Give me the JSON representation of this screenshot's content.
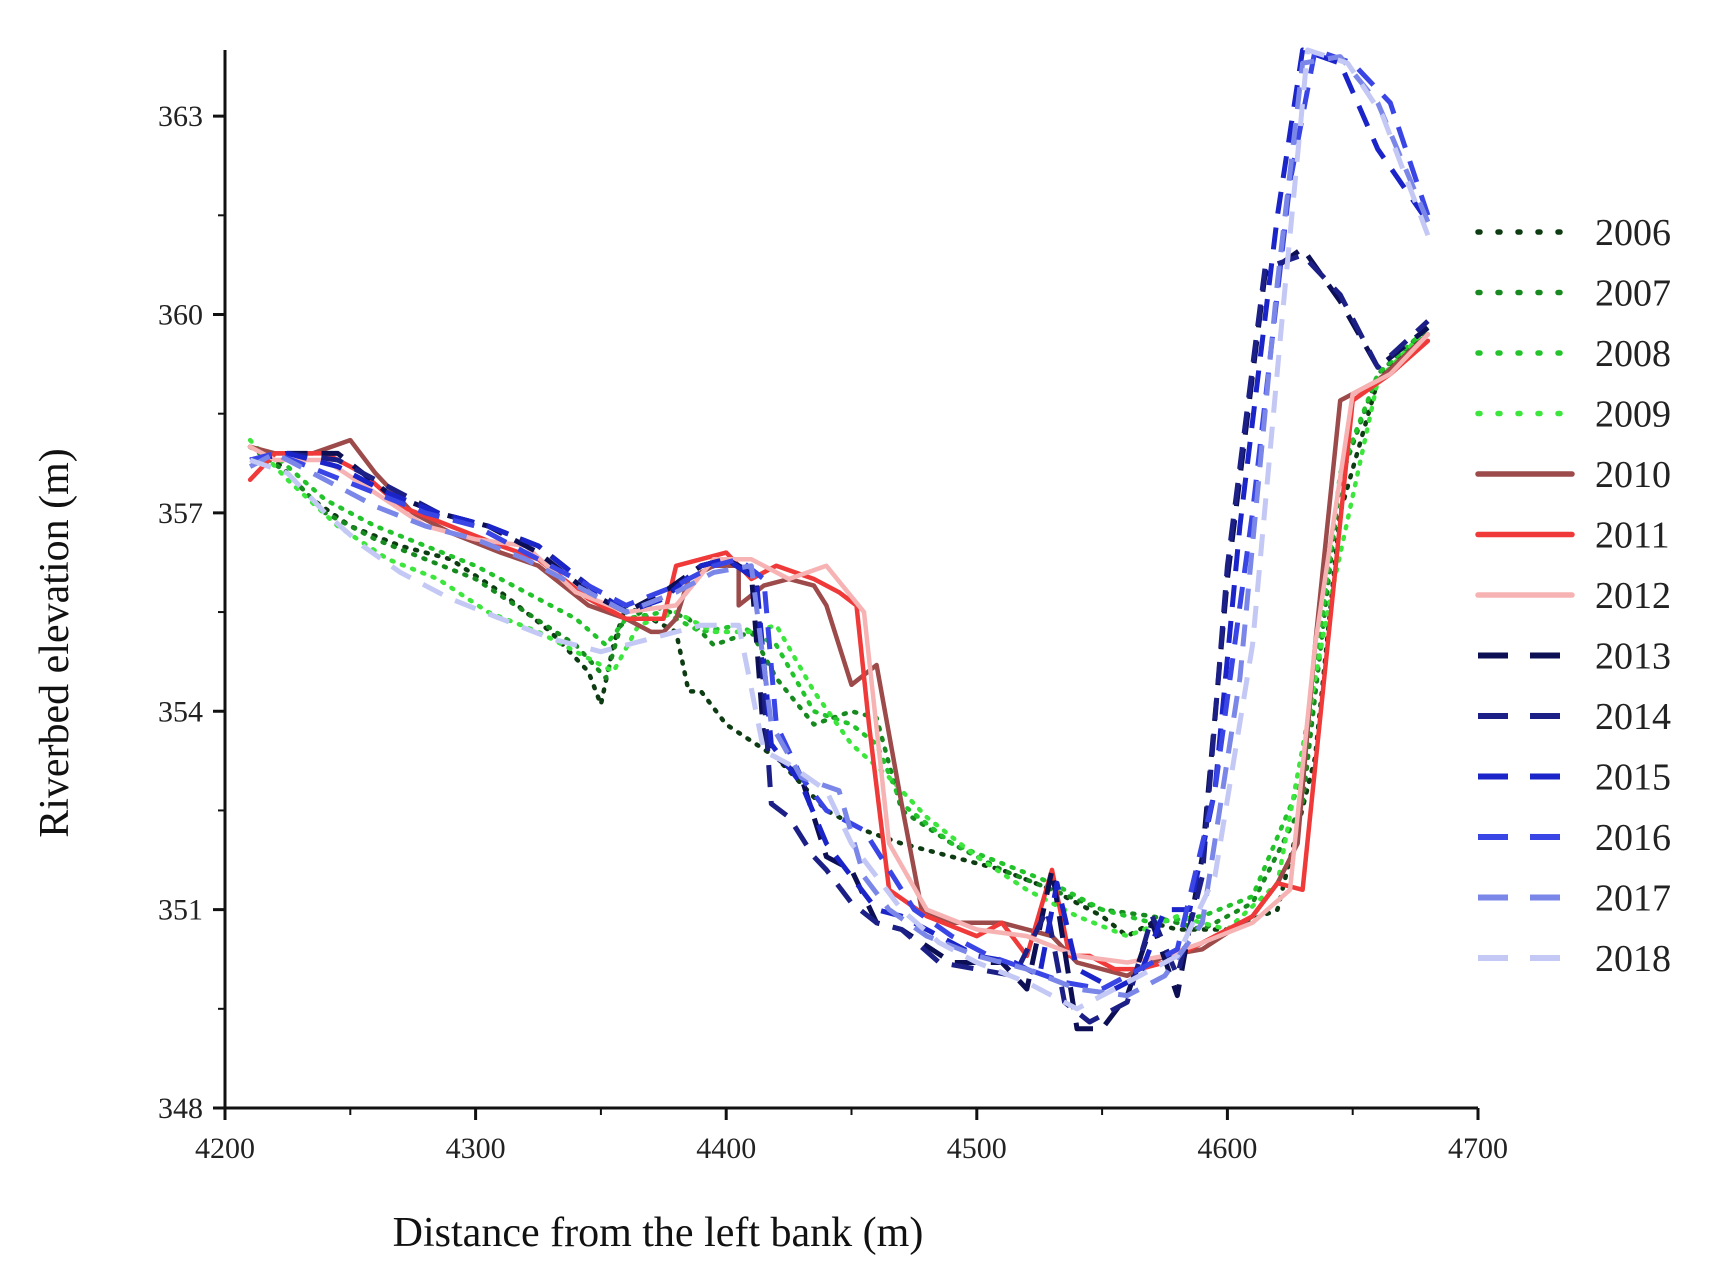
{
  "chart_data": {
    "type": "line",
    "title": "",
    "xlabel": "Distance from the left bank (m)",
    "ylabel": "Riverbed elevation (m)",
    "xlim": [
      4200,
      4700
    ],
    "ylim": [
      348,
      364
    ],
    "xticks": [
      4200,
      4300,
      4400,
      4500,
      4600,
      4700
    ],
    "yticks": [
      348,
      351,
      354,
      357,
      360,
      363
    ],
    "legend_position": "right",
    "series": [
      {
        "name": "2006",
        "color": "#0d3b12",
        "style": "dotted",
        "x": [
          4210,
          4220,
          4235,
          4250,
          4270,
          4290,
          4310,
          4330,
          4345,
          4350,
          4355,
          4360,
          4370,
          4380,
          4385,
          4390,
          4400,
          4420,
          4440,
          4455,
          4470,
          4490,
          4510,
          4530,
          4550,
          4560,
          4570,
          4580,
          4600,
          4620,
          4635,
          4645,
          4660,
          4680
        ],
        "y": [
          358.0,
          357.8,
          357.2,
          356.8,
          356.5,
          356.3,
          355.8,
          355.2,
          354.6,
          354.1,
          355.0,
          355.6,
          355.4,
          355.2,
          354.3,
          354.3,
          353.8,
          353.3,
          352.5,
          352.2,
          352.0,
          351.8,
          351.6,
          351.3,
          350.9,
          350.6,
          350.8,
          350.7,
          350.7,
          351.0,
          353.3,
          357.0,
          359.0,
          359.8
        ]
      },
      {
        "name": "2007",
        "color": "#168a1e",
        "style": "dotted",
        "x": [
          4210,
          4225,
          4240,
          4260,
          4280,
          4300,
          4320,
          4340,
          4352,
          4358,
          4370,
          4385,
          4395,
          4410,
          4420,
          4435,
          4450,
          4460,
          4470,
          4490,
          4510,
          4530,
          4550,
          4570,
          4590,
          4610,
          4630,
          4645,
          4660,
          4680
        ],
        "y": [
          358.0,
          357.6,
          357.0,
          356.6,
          356.3,
          356.0,
          355.5,
          355.0,
          354.5,
          355.3,
          355.6,
          355.4,
          355.0,
          355.2,
          354.5,
          353.8,
          354.0,
          353.9,
          352.5,
          352.0,
          351.6,
          351.3,
          351.0,
          350.9,
          350.7,
          351.1,
          352.6,
          357.5,
          359.1,
          359.8
        ]
      },
      {
        "name": "2008",
        "color": "#22c32b",
        "style": "dotted",
        "x": [
          4210,
          4222,
          4240,
          4260,
          4280,
          4300,
          4320,
          4340,
          4352,
          4360,
          4375,
          4390,
          4405,
          4420,
          4435,
          4450,
          4460,
          4470,
          4490,
          4510,
          4530,
          4550,
          4570,
          4590,
          4610,
          4630,
          4645,
          4660,
          4680
        ],
        "y": [
          358.0,
          357.8,
          357.2,
          356.8,
          356.5,
          356.2,
          355.8,
          355.4,
          355.0,
          355.4,
          355.5,
          355.2,
          355.3,
          355.0,
          354.0,
          353.8,
          353.5,
          352.6,
          352.0,
          351.7,
          351.4,
          351.0,
          350.8,
          350.9,
          351.2,
          353.0,
          357.6,
          359.1,
          359.8
        ]
      },
      {
        "name": "2009",
        "color": "#3ce63c",
        "style": "dotted",
        "x": [
          4210,
          4225,
          4245,
          4265,
          4285,
          4305,
          4325,
          4345,
          4355,
          4365,
          4380,
          4395,
          4410,
          4420,
          4435,
          4450,
          4465,
          4480,
          4500,
          4520,
          4540,
          4560,
          4580,
          4600,
          4620,
          4640,
          4660,
          4680
        ],
        "y": [
          358.1,
          357.5,
          356.8,
          356.3,
          356.0,
          355.5,
          355.2,
          354.8,
          354.6,
          355.3,
          355.5,
          355.2,
          355.2,
          355.3,
          354.3,
          353.5,
          353.0,
          352.4,
          351.8,
          351.3,
          350.9,
          350.6,
          350.9,
          350.7,
          351.4,
          355.5,
          359.0,
          359.8
        ]
      },
      {
        "name": "2010",
        "color": "#9c4a4a",
        "style": "solid",
        "x": [
          4210,
          4220,
          4235,
          4250,
          4260,
          4275,
          4290,
          4310,
          4325,
          4345,
          4360,
          4370,
          4375,
          4380,
          4385,
          4395,
          4405,
          4405,
          4415,
          4425,
          4435,
          4440,
          4450,
          4460,
          4470,
          4478,
          4490,
          4510,
          4530,
          4540,
          4560,
          4575,
          4590,
          4610,
          4620,
          4628,
          4635,
          4645,
          4660,
          4680
        ],
        "y": [
          358.0,
          357.9,
          357.9,
          358.1,
          357.6,
          357.0,
          356.7,
          356.4,
          356.2,
          355.6,
          355.4,
          355.2,
          355.2,
          355.4,
          356.0,
          356.2,
          356.2,
          355.6,
          355.9,
          356.0,
          355.9,
          355.6,
          354.4,
          354.7,
          352.6,
          351.0,
          350.8,
          350.8,
          350.6,
          350.2,
          350.0,
          350.3,
          350.4,
          350.9,
          351.4,
          352.0,
          355.0,
          358.7,
          359.0,
          359.7
        ]
      },
      {
        "name": "2011",
        "color": "#f03a3a",
        "style": "solid",
        "x": [
          4210,
          4220,
          4240,
          4255,
          4270,
          4290,
          4310,
          4325,
          4345,
          4360,
          4375,
          4380,
          4390,
          4400,
          4410,
          4420,
          4435,
          4445,
          4452,
          4457,
          4465,
          4480,
          4500,
          4510,
          4520,
          4530,
          4537,
          4545,
          4555,
          4565,
          4575,
          4590,
          4610,
          4620,
          4630,
          4640,
          4650,
          4665,
          4680
        ],
        "y": [
          357.5,
          357.9,
          357.9,
          357.6,
          357.1,
          356.8,
          356.5,
          356.3,
          355.7,
          355.4,
          355.4,
          356.2,
          356.3,
          356.4,
          356.0,
          356.2,
          356.0,
          355.8,
          355.6,
          353.8,
          351.3,
          350.9,
          350.6,
          350.8,
          350.3,
          351.6,
          350.3,
          350.3,
          350.1,
          350.1,
          350.2,
          350.5,
          350.9,
          351.4,
          351.3,
          355.0,
          358.7,
          359.1,
          359.6
        ]
      },
      {
        "name": "2012",
        "color": "#f7b3b3",
        "style": "solid",
        "x": [
          4210,
          4220,
          4240,
          4260,
          4280,
          4300,
          4320,
          4340,
          4360,
          4380,
          4395,
          4410,
          4425,
          4440,
          4455,
          4465,
          4480,
          4500,
          4520,
          4540,
          4560,
          4575,
          4590,
          4610,
          4625,
          4635,
          4650,
          4665,
          4680
        ],
        "y": [
          358.0,
          357.8,
          357.8,
          357.3,
          356.8,
          356.6,
          356.5,
          355.8,
          355.5,
          355.6,
          356.3,
          356.3,
          356.0,
          356.2,
          355.5,
          352.0,
          351.0,
          350.7,
          350.6,
          350.3,
          350.2,
          350.3,
          350.5,
          350.8,
          351.3,
          355.0,
          358.8,
          359.1,
          359.7
        ]
      },
      {
        "name": "2013",
        "color": "#0c0f54",
        "style": "dashed",
        "x": [
          4210,
          4225,
          4245,
          4265,
          4285,
          4305,
          4325,
          4345,
          4360,
          4375,
          4390,
          4400,
          4410,
          4415,
          4420,
          4430,
          4440,
          4450,
          4460,
          4470,
          4490,
          4510,
          4520,
          4530,
          4540,
          4550,
          4560,
          4570,
          4580,
          4590,
          4600,
          4615,
          4630,
          4645,
          4660,
          4680
        ],
        "y": [
          357.8,
          357.9,
          357.9,
          357.3,
          357.0,
          356.8,
          356.4,
          355.8,
          355.5,
          355.8,
          356.2,
          356.3,
          356.1,
          353.6,
          353.3,
          353.0,
          351.8,
          351.6,
          350.8,
          350.7,
          350.2,
          350.2,
          349.8,
          351.6,
          349.2,
          349.2,
          349.7,
          350.8,
          349.7,
          351.8,
          356.0,
          360.6,
          361.0,
          360.2,
          359.2,
          359.8
        ]
      },
      {
        "name": "2014",
        "color": "#1b1f86",
        "style": "dashed",
        "x": [
          4210,
          4225,
          4245,
          4265,
          4285,
          4305,
          4325,
          4345,
          4360,
          4375,
          4390,
          4400,
          4412,
          4418,
          4425,
          4435,
          4440,
          4450,
          4460,
          4470,
          4485,
          4500,
          4515,
          4528,
          4535,
          4545,
          4560,
          4570,
          4580,
          4590,
          4600,
          4615,
          4630,
          4645,
          4660,
          4680
        ],
        "y": [
          357.8,
          357.9,
          357.8,
          357.4,
          357.0,
          356.8,
          356.5,
          355.9,
          355.5,
          355.7,
          356.2,
          356.3,
          356.0,
          352.6,
          352.4,
          351.8,
          351.6,
          351.1,
          350.8,
          350.7,
          350.2,
          350.1,
          350.0,
          351.0,
          349.6,
          349.3,
          349.6,
          350.9,
          350.0,
          351.5,
          356.2,
          360.7,
          360.9,
          360.3,
          359.2,
          359.9
        ]
      },
      {
        "name": "2015",
        "color": "#1a24c8",
        "style": "dashed",
        "x": [
          4210,
          4225,
          4245,
          4265,
          4285,
          4305,
          4325,
          4345,
          4360,
          4375,
          4390,
          4400,
          4412,
          4418,
          4430,
          4440,
          4450,
          4460,
          4470,
          4485,
          4500,
          4515,
          4525,
          4532,
          4540,
          4555,
          4565,
          4575,
          4585,
          4595,
          4605,
          4620,
          4630,
          4645,
          4660,
          4680
        ],
        "y": [
          357.8,
          357.9,
          357.7,
          357.3,
          357.0,
          356.8,
          356.5,
          355.9,
          355.5,
          355.7,
          356.2,
          356.3,
          356.0,
          353.5,
          352.9,
          352.0,
          351.5,
          351.0,
          350.9,
          350.6,
          350.3,
          350.2,
          350.0,
          351.4,
          350.1,
          349.8,
          350.0,
          351.0,
          351.0,
          352.8,
          356.8,
          361.5,
          364.0,
          363.8,
          362.5,
          361.4
        ]
      },
      {
        "name": "2016",
        "color": "#3a45e6",
        "style": "dashed",
        "x": [
          4210,
          4220,
          4240,
          4260,
          4280,
          4300,
          4320,
          4340,
          4360,
          4380,
          4395,
          4405,
          4415,
          4420,
          4430,
          4440,
          4455,
          4465,
          4475,
          4490,
          4505,
          4520,
          4535,
          4550,
          4565,
          4580,
          4595,
          4610,
          4625,
          4635,
          4650,
          4665,
          4680
        ],
        "y": [
          357.8,
          357.9,
          357.6,
          357.3,
          357.0,
          356.8,
          356.4,
          356.0,
          355.6,
          355.9,
          356.2,
          356.3,
          356.0,
          353.8,
          353.0,
          352.5,
          352.2,
          351.6,
          351.0,
          350.6,
          350.3,
          350.1,
          349.9,
          349.8,
          350.1,
          350.4,
          352.8,
          357.0,
          362.0,
          364.0,
          363.8,
          363.2,
          361.5
        ]
      },
      {
        "name": "2017",
        "color": "#7a86e8",
        "style": "dashed",
        "x": [
          4210,
          4220,
          4240,
          4260,
          4280,
          4300,
          4320,
          4340,
          4360,
          4380,
          4395,
          4410,
          4418,
          4430,
          4445,
          4455,
          4465,
          4480,
          4500,
          4520,
          4540,
          4560,
          4575,
          4590,
          4605,
          4620,
          4630,
          4645,
          4660,
          4680
        ],
        "y": [
          357.7,
          357.9,
          357.5,
          357.1,
          356.8,
          356.6,
          356.3,
          355.9,
          355.5,
          355.8,
          356.1,
          356.2,
          353.8,
          353.0,
          352.8,
          351.5,
          351.0,
          350.6,
          350.3,
          350.1,
          349.8,
          349.7,
          350.0,
          350.8,
          354.5,
          360.5,
          363.8,
          363.9,
          363.2,
          361.4
        ]
      },
      {
        "name": "2018",
        "color": "#c4c8f4",
        "style": "dashed",
        "x": [
          4210,
          4225,
          4240,
          4255,
          4270,
          4290,
          4310,
          4330,
          4350,
          4370,
          4390,
          4405,
          4415,
          4425,
          4440,
          4450,
          4460,
          4470,
          4485,
          4500,
          4520,
          4540,
          4560,
          4580,
          4595,
          4610,
          4622,
          4632,
          4648,
          4662,
          4680
        ],
        "y": [
          357.8,
          357.6,
          357.0,
          356.5,
          356.1,
          355.7,
          355.4,
          355.1,
          354.9,
          355.1,
          355.3,
          355.3,
          353.4,
          353.2,
          352.8,
          352.0,
          351.5,
          351.0,
          350.5,
          350.2,
          349.9,
          349.5,
          349.9,
          350.3,
          351.5,
          355.0,
          360.0,
          364.0,
          363.8,
          363.0,
          361.2
        ]
      }
    ]
  }
}
